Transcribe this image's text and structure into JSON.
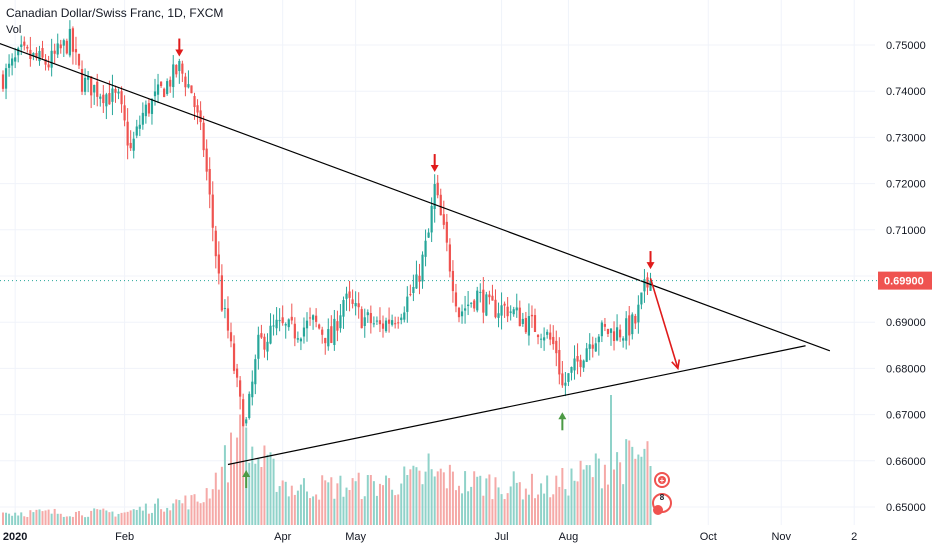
{
  "chart": {
    "title": "Canadian Dollar/Swiss Franc, 1D, FXCM",
    "volume_label": "Vol"
  },
  "chart_data": {
    "type": "candlestick",
    "title": "Canadian Dollar/Swiss Franc, 1D, FXCM",
    "y_ticks": [
      "0.75000",
      "0.74000",
      "0.73000",
      "0.72000",
      "0.71000",
      "0.70000",
      "0.69000",
      "0.68000",
      "0.67000",
      "0.66000",
      "0.65000"
    ],
    "y_tick_values": [
      0.75,
      0.74,
      0.73,
      0.72,
      0.71,
      0.7,
      0.69,
      0.68,
      0.67,
      0.66,
      0.65
    ],
    "ylim": [
      0.6468,
      0.7545
    ],
    "x_ticks": [
      "2020",
      "Feb",
      "Apr",
      "May",
      "Jul",
      "Aug",
      "Oct",
      "Nov",
      "2"
    ],
    "x_tick_index": [
      4,
      40,
      92,
      116,
      164,
      186,
      232,
      256,
      280
    ],
    "last_price_label": "0.69900",
    "last_price": 0.699,
    "last_index": 213,
    "trendlines": [
      {
        "name": "resistance",
        "from": [
          -10,
          0.7525
        ],
        "to": [
          272,
          0.6838
        ]
      },
      {
        "name": "support",
        "from": [
          74,
          0.6592
        ],
        "to": [
          264,
          0.6849
        ]
      }
    ],
    "arrows": [
      {
        "type": "down",
        "color": "#e01b1b",
        "at": [
          58,
          0.7475
        ]
      },
      {
        "type": "down",
        "color": "#e01b1b",
        "at": [
          142,
          0.7225
        ]
      },
      {
        "type": "down",
        "color": "#e01b1b",
        "at": [
          213,
          0.7015
        ]
      },
      {
        "type": "up",
        "color": "#4c9a45",
        "at": [
          80,
          0.658
        ]
      },
      {
        "type": "up",
        "color": "#4c9a45",
        "at": [
          184,
          0.6705
        ]
      }
    ],
    "projection": {
      "color": "#e01b1b",
      "from": [
        213,
        0.6995
      ],
      "to": [
        222,
        0.68
      ]
    },
    "anchors": [
      [
        0,
        0.743
      ],
      [
        6,
        0.748
      ],
      [
        15,
        0.746
      ],
      [
        22,
        0.751
      ],
      [
        26,
        0.742
      ],
      [
        32,
        0.74
      ],
      [
        38,
        0.738
      ],
      [
        42,
        0.727
      ],
      [
        46,
        0.735
      ],
      [
        52,
        0.74
      ],
      [
        58,
        0.745
      ],
      [
        62,
        0.74
      ],
      [
        66,
        0.728
      ],
      [
        70,
        0.705
      ],
      [
        72,
        0.694
      ],
      [
        74,
        0.688
      ],
      [
        78,
        0.672
      ],
      [
        80,
        0.668
      ],
      [
        84,
        0.685
      ],
      [
        90,
        0.689
      ],
      [
        96,
        0.688
      ],
      [
        102,
        0.69
      ],
      [
        108,
        0.686
      ],
      [
        112,
        0.695
      ],
      [
        118,
        0.691
      ],
      [
        124,
        0.689
      ],
      [
        130,
        0.692
      ],
      [
        136,
        0.698
      ],
      [
        140,
        0.709
      ],
      [
        142,
        0.719
      ],
      [
        146,
        0.706
      ],
      [
        150,
        0.692
      ],
      [
        156,
        0.696
      ],
      [
        160,
        0.693
      ],
      [
        166,
        0.693
      ],
      [
        172,
        0.69
      ],
      [
        178,
        0.688
      ],
      [
        182,
        0.684
      ],
      [
        184,
        0.676
      ],
      [
        188,
        0.68
      ],
      [
        192,
        0.685
      ],
      [
        196,
        0.688
      ],
      [
        200,
        0.688
      ],
      [
        204,
        0.688
      ],
      [
        208,
        0.69
      ],
      [
        211,
        0.697
      ],
      [
        213,
        0.699
      ]
    ],
    "volume_shape": [
      [
        0,
        0.1
      ],
      [
        40,
        0.1
      ],
      [
        55,
        0.18
      ],
      [
        65,
        0.2
      ],
      [
        72,
        0.45
      ],
      [
        78,
        0.7
      ],
      [
        85,
        0.5
      ],
      [
        95,
        0.3
      ],
      [
        120,
        0.32
      ],
      [
        145,
        0.4
      ],
      [
        150,
        0.35
      ],
      [
        180,
        0.3
      ],
      [
        200,
        0.5
      ],
      [
        213,
        0.55
      ]
    ],
    "volume_spikes": [
      [
        78,
        0.85
      ],
      [
        80,
        0.75
      ],
      [
        140,
        0.55
      ],
      [
        200,
        1.0
      ],
      [
        206,
        0.65
      ]
    ],
    "colors": {
      "up": "#26a69a",
      "down": "#ef5350",
      "volume_up": "#8fd2c9",
      "volume_down": "#f5a9a7",
      "price_tag": "#ef5350",
      "price_line": "#26a69a",
      "grid": "#f0f3fa",
      "axis_text": "#131722",
      "trendline": "#000000"
    },
    "badges": [
      {
        "name": "plus-badge",
        "label": "+",
        "color": "#ef5350"
      },
      {
        "name": "count-badge",
        "label": "8",
        "color": "#ef5350"
      }
    ],
    "grid": true,
    "legend": "none"
  }
}
